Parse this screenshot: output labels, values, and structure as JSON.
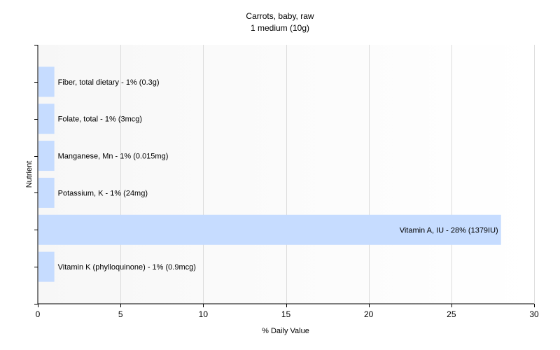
{
  "chart_data": {
    "type": "bar",
    "orientation": "horizontal",
    "title": "Carrots, baby, raw",
    "subtitle": "1 medium (10g)",
    "xlabel": "% Daily Value",
    "ylabel": "Nutrient",
    "xlim": [
      0,
      30
    ],
    "xticks": [
      0,
      5,
      10,
      15,
      20,
      25,
      30
    ],
    "grid": true,
    "bar_color": "#c6dcff",
    "bars": [
      {
        "label": "Fiber, total dietary - 1% (0.3g)",
        "value": 1
      },
      {
        "label": "Folate, total - 1% (3mcg)",
        "value": 1
      },
      {
        "label": "Manganese, Mn - 1% (0.015mg)",
        "value": 1
      },
      {
        "label": "Potassium, K - 1% (24mg)",
        "value": 1
      },
      {
        "label": "Vitamin A, IU - 28% (1379IU)",
        "value": 28
      },
      {
        "label": "Vitamin K (phylloquinone) - 1% (0.9mcg)",
        "value": 1
      }
    ]
  }
}
